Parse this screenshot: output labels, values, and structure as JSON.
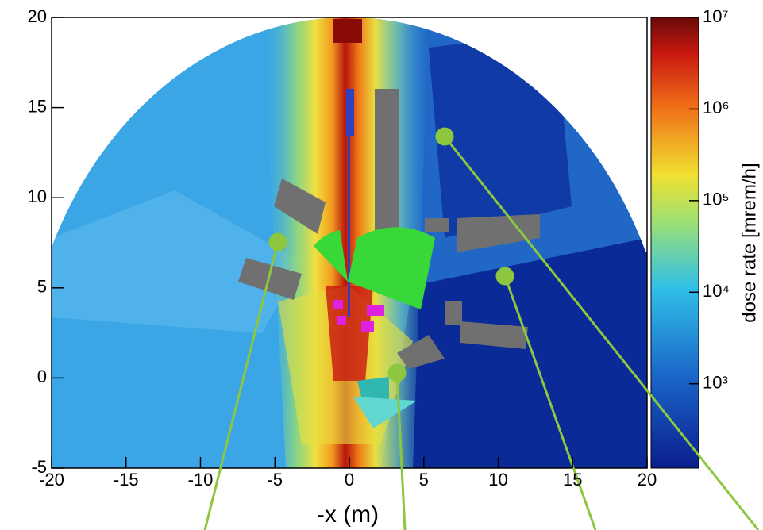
{
  "chart_data": {
    "type": "heatmap",
    "x_label": "-x (m)",
    "colorbar_label": "dose rate [mrem/h]",
    "xlim": [
      -20,
      20
    ],
    "xticks": [
      -20,
      -15,
      -10,
      -5,
      0,
      5,
      10,
      15,
      20
    ],
    "ylim": [
      -5,
      20
    ],
    "yticks": [
      -5,
      0,
      5,
      10,
      15,
      20
    ],
    "zlim": [
      120,
      10000000
    ],
    "zscale": "log",
    "zticks": [
      {
        "value": 1000,
        "label": "10³"
      },
      {
        "value": 10000,
        "label": "10⁴"
      },
      {
        "value": 100000,
        "label": "10⁵"
      },
      {
        "value": 1000000,
        "label": "10⁶"
      },
      {
        "value": 10000000,
        "label": "10⁷"
      }
    ]
  }
}
